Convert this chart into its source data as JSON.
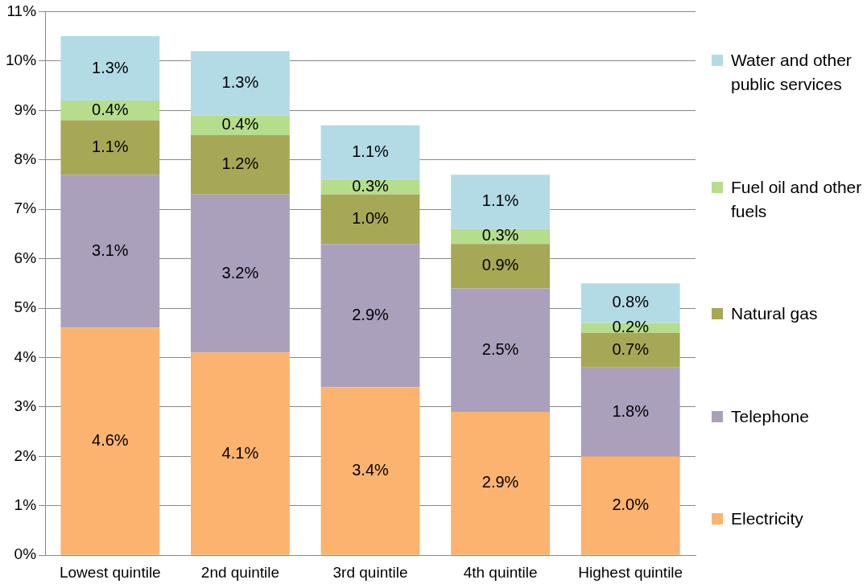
{
  "chart_data": {
    "type": "bar",
    "stacked": true,
    "categories": [
      "Lowest quintile",
      "2nd quintile",
      "3rd quintile",
      "4th quintile",
      "Highest quintile"
    ],
    "series": [
      {
        "name": "Electricity",
        "color": "#fbb36f",
        "values": [
          4.6,
          4.1,
          3.4,
          2.9,
          2.0
        ]
      },
      {
        "name": "Telephone",
        "color": "#aaa0bc",
        "values": [
          3.1,
          3.2,
          2.9,
          2.5,
          1.8
        ]
      },
      {
        "name": "Natural gas",
        "color": "#a7a855",
        "values": [
          1.1,
          1.2,
          1.0,
          0.9,
          0.7
        ]
      },
      {
        "name": "Fuel oil and other fuels",
        "color": "#b5dd8b",
        "values": [
          0.4,
          0.4,
          0.3,
          0.3,
          0.2
        ]
      },
      {
        "name": "Water and other public services",
        "color": "#b3dbe6",
        "values": [
          1.3,
          1.3,
          1.1,
          1.1,
          0.8
        ]
      }
    ],
    "ylim": [
      0,
      11
    ],
    "yticks": [
      {
        "value": 0,
        "label": "0%"
      },
      {
        "value": 1,
        "label": "1%"
      },
      {
        "value": 2,
        "label": "2%"
      },
      {
        "value": 3,
        "label": "3%"
      },
      {
        "value": 4,
        "label": "4%"
      },
      {
        "value": 5,
        "label": "5%"
      },
      {
        "value": 6,
        "label": "6%"
      },
      {
        "value": 7,
        "label": "7%"
      },
      {
        "value": 8,
        "label": "8%"
      },
      {
        "value": 9,
        "label": "9%"
      },
      {
        "value": 10,
        "label": "10%"
      },
      {
        "value": 11,
        "label": "11%"
      }
    ],
    "value_labels": [
      [
        "4.6%",
        "4.1%",
        "3.4%",
        "2.9%",
        "2.0%"
      ],
      [
        "3.1%",
        "3.2%",
        "2.9%",
        "2.5%",
        "1.8%"
      ],
      [
        "1.1%",
        "1.2%",
        "1.0%",
        "0.9%",
        "0.7%"
      ],
      [
        "0.4%",
        "0.4%",
        "0.3%",
        "0.3%",
        "0.2%"
      ],
      [
        "1.3%",
        "1.3%",
        "1.1%",
        "1.1%",
        "0.8%"
      ]
    ],
    "grid": "y",
    "legend": "right"
  }
}
